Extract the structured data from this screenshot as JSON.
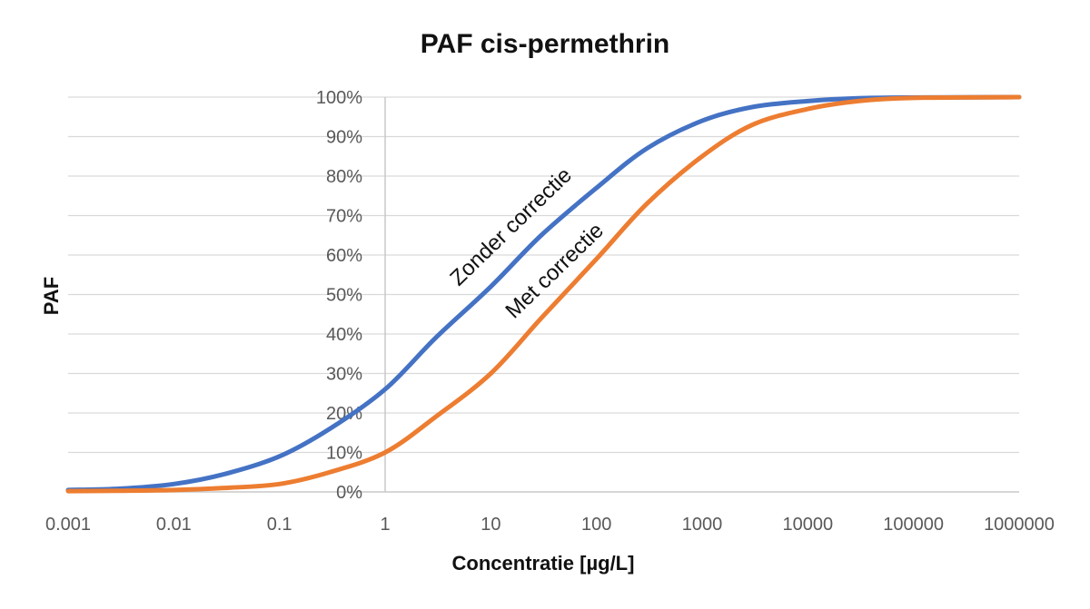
{
  "chart_data": {
    "type": "line",
    "title": "PAF cis-permethrin",
    "xlabel": "Concentratie [µg/L]",
    "ylabel": "PAF",
    "x_scale": "log",
    "xlim": [
      0.001,
      1000000
    ],
    "ylim": [
      0,
      1
    ],
    "grid": true,
    "x_ticks": [
      "0.001",
      "0.01",
      "0.1",
      "1",
      "10",
      "100",
      "1000",
      "10000",
      "100000",
      "1000000"
    ],
    "y_ticks": [
      "0%",
      "10%",
      "20%",
      "30%",
      "40%",
      "50%",
      "60%",
      "70%",
      "80%",
      "90%",
      "100%"
    ],
    "series": [
      {
        "name": "Zonder correctie",
        "color": "#4472c4",
        "x": [
          0.001,
          0.003,
          0.01,
          0.03,
          0.1,
          0.3,
          1,
          3,
          10,
          30,
          100,
          300,
          1000,
          3000,
          10000,
          30000,
          100000,
          1000000
        ],
        "y": [
          0.005,
          0.008,
          0.02,
          0.045,
          0.09,
          0.16,
          0.26,
          0.39,
          0.52,
          0.65,
          0.77,
          0.87,
          0.94,
          0.975,
          0.99,
          0.997,
          0.999,
          1.0
        ]
      },
      {
        "name": "Met correctie",
        "color": "#ed7d31",
        "x": [
          0.001,
          0.003,
          0.01,
          0.03,
          0.1,
          0.3,
          1,
          3,
          10,
          30,
          100,
          300,
          1000,
          3000,
          10000,
          30000,
          100000,
          1000000
        ],
        "y": [
          0.002,
          0.003,
          0.005,
          0.01,
          0.02,
          0.05,
          0.1,
          0.19,
          0.3,
          0.44,
          0.59,
          0.73,
          0.85,
          0.93,
          0.97,
          0.99,
          0.998,
          1.0
        ]
      }
    ],
    "annotations": [
      "Zonder correctie",
      "Met correctie"
    ]
  }
}
